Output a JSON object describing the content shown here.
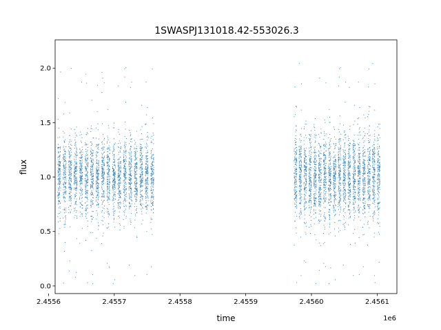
{
  "chart_data": {
    "type": "scatter",
    "title": "1SWASPJ131018.42-553026.3",
    "xlabel": "time",
    "ylabel": "flux",
    "x_offset_label": "1e6",
    "xlim": [
      2.45561,
      2.45613
    ],
    "ylim": [
      -0.07,
      2.26
    ],
    "x_ticks": [
      2.4556,
      2.4557,
      2.4558,
      2.4559,
      2.456,
      2.4561
    ],
    "x_tick_labels": [
      "2.4556",
      "2.4557",
      "2.4558",
      "2.4559",
      "2.4560",
      "2.4561"
    ],
    "y_ticks": [
      0.0,
      0.5,
      1.0,
      1.5,
      2.0
    ],
    "y_tick_labels": [
      "0.0",
      "0.5",
      "1.0",
      "1.5",
      "2.0"
    ],
    "grid": false,
    "series": [
      {
        "color": "#1f77b4",
        "marker": "dot",
        "segments": [
          {
            "x_start": 2.455612,
            "x_end": 2.455762,
            "center": 1.0,
            "spread": 0.18
          },
          {
            "x_start": 2.455972,
            "x_end": 2.456106,
            "center": 1.0,
            "spread": 0.2
          }
        ],
        "flux_range": [
          0.02,
          2.15
        ]
      }
    ]
  }
}
